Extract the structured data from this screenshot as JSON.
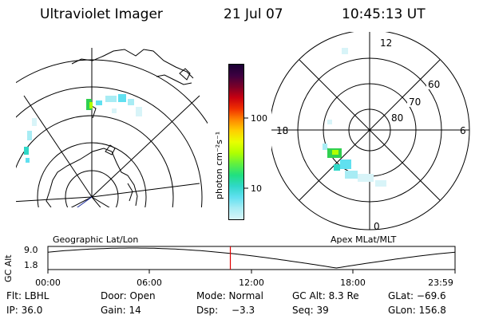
{
  "header": {
    "title": "Ultraviolet Imager",
    "date": "21 Jul 07",
    "time": "10:45:13 UT"
  },
  "left_panel": {
    "label": "Geographic Lat/Lon"
  },
  "right_panel": {
    "label": "Apex MLat/MLT",
    "mlt_labels": {
      "top": "12",
      "left": "18",
      "right": "6",
      "bottom": "0"
    },
    "mlat_labels": [
      "60",
      "70",
      "80"
    ]
  },
  "colorbar": {
    "unit": "photon cm⁻²s⁻¹",
    "ticks": [
      "100",
      "10"
    ],
    "colors": [
      "#1a0033",
      "#3d0040",
      "#7a0028",
      "#c80010",
      "#f03000",
      "#ff8800",
      "#ffd000",
      "#e8ff00",
      "#b0ff00",
      "#60f040",
      "#20e080",
      "#30d8c8",
      "#60e0f0",
      "#a8ecf4",
      "#d8f4f8"
    ]
  },
  "altitude_plot": {
    "ylabel": "GC Alt",
    "yticks": [
      "9.0",
      "1.8"
    ],
    "xticks": [
      "00:00",
      "06:00",
      "12:00",
      "18:00",
      "23:59"
    ],
    "current_time_hours": 10.754
  },
  "footer": {
    "row1": {
      "flt": "Flt: LBHL",
      "door": "Door: Open",
      "mode": "Mode: Normal",
      "gc_alt": "GC Alt: 8.3 Re",
      "glat": "GLat: −69.6"
    },
    "row2": {
      "ip": "IP: 36.0",
      "gain": "Gain: 14",
      "dsp_label": "Dsp:",
      "dsp_value": "−3.3",
      "seq": "Seq: 39",
      "glon": "GLon: 156.8"
    }
  }
}
